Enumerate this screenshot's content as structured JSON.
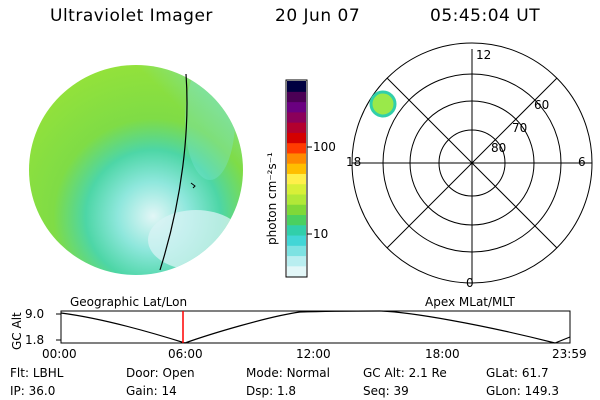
{
  "header": {
    "instrument": "Ultraviolet Imager",
    "date": "20 Jun 07",
    "time": "05:45:04 UT"
  },
  "colorbar": {
    "unit_label": "photon cm⁻²s⁻¹",
    "ticks": [
      "100",
      "10"
    ],
    "colors": [
      "#000040",
      "#4b0055",
      "#6a0080",
      "#8b005a",
      "#b3002e",
      "#d40000",
      "#ff3b00",
      "#ff8a00",
      "#ffbe00",
      "#ffef4a",
      "#d8ef38",
      "#b1e838",
      "#7fd838",
      "#4ad060",
      "#31cfaa",
      "#42d6d6",
      "#7de2e2",
      "#b9eef0",
      "#e3f7f8"
    ]
  },
  "polar": {
    "mlt_labels": [
      "12",
      "6",
      "0",
      "18"
    ],
    "mlat_labels": [
      "60",
      "70",
      "80"
    ]
  },
  "orbit": {
    "left_label": "Geographic Lat/Lon",
    "right_label": "Apex MLat/MLT",
    "y_title": "GC Alt",
    "y_ticks": [
      "9.0",
      "1.8"
    ],
    "x_ticks": [
      "00:00",
      "06:00",
      "12:00",
      "18:00",
      "23:59"
    ]
  },
  "info": [
    [
      {
        "k": "Flt:",
        "v": "LBHL"
      },
      {
        "k": "Door:",
        "v": "Open"
      },
      {
        "k": "Mode:",
        "v": "Normal"
      },
      {
        "k": "GC Alt:",
        "v": "2.1 Re"
      },
      {
        "k": "GLat:",
        "v": "61.7"
      }
    ],
    [
      {
        "k": "IP:",
        "v": "36.0"
      },
      {
        "k": "Gain:",
        "v": "14"
      },
      {
        "k": "Dsp:",
        "v": "1.8"
      },
      {
        "k": "Seq:",
        "v": "39"
      },
      {
        "k": "GLon:",
        "v": "149.3"
      }
    ]
  ],
  "colors": {
    "disk_green": "#8ee03a",
    "disk_cyan": "#3fd4b4",
    "disk_pale": "#cfeef0",
    "marker": "#ff0000"
  }
}
